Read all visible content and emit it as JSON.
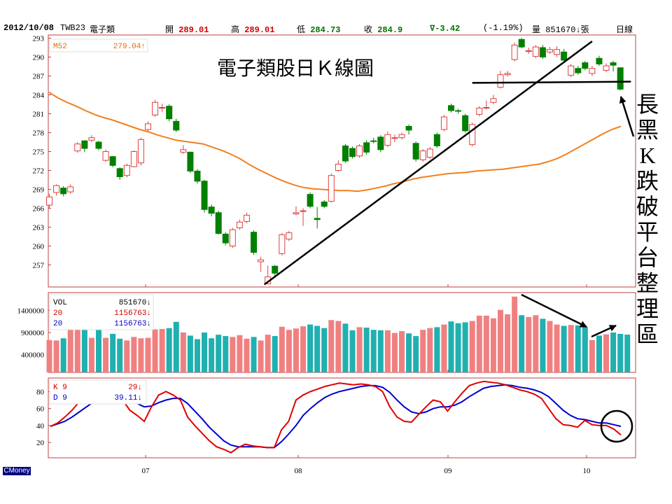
{
  "header": {
    "date": "2012/10/08",
    "code": "TWB23",
    "name": "電子類",
    "open_label": "開",
    "open": "289.01",
    "high_label": "高",
    "high": "289.01",
    "low_label": "低",
    "low": "284.73",
    "close_label": "收",
    "close": "284.9",
    "change": "∇-3.42",
    "change_pct": "(-1.19%)",
    "volume_label": "量",
    "volume": "851670↓張",
    "period": "日線"
  },
  "brand": "CMoney",
  "chart_data": {
    "type": "candlestick",
    "title": "電子類股日Ｋ線圖",
    "x_ticks": [
      "07",
      "08",
      "09",
      "10"
    ],
    "price_axis": {
      "ticks": [
        257,
        260,
        263,
        266,
        269,
        272,
        275,
        278,
        281,
        284,
        287,
        290,
        293
      ],
      "ylim": [
        253.5,
        293.5
      ]
    },
    "ma_legend": {
      "label": "M52",
      "value": "279.04↑"
    },
    "candles": [
      [
        266.5,
        267.8,
        268.3,
        266.0
      ],
      [
        268.5,
        269.6,
        269.8,
        268.0
      ],
      [
        269.2,
        268.3,
        269.5,
        267.9
      ],
      [
        268.6,
        269.4,
        269.8,
        268.3
      ],
      [
        275.1,
        276.2,
        276.5,
        274.8
      ],
      [
        276.7,
        275.5,
        276.8,
        274.9
      ],
      [
        276.8,
        277.2,
        277.6,
        276.5
      ],
      [
        276.5,
        275.5,
        276.7,
        275.2
      ],
      [
        273.6,
        275.0,
        275.3,
        273.4
      ],
      [
        274.2,
        272.8,
        274.3,
        272.5
      ],
      [
        272.3,
        271.0,
        272.5,
        270.5
      ],
      [
        271.2,
        272.8,
        273.1,
        270.9
      ],
      [
        272.6,
        275.0,
        275.2,
        272.5
      ],
      [
        273.2,
        276.9,
        277.2,
        272.8
      ],
      [
        278.5,
        279.4,
        279.8,
        278.2
      ],
      [
        280.8,
        282.8,
        283.2,
        280.5
      ],
      [
        281.9,
        282.0,
        282.6,
        281.3
      ],
      [
        282.2,
        280.2,
        282.5,
        279.8
      ],
      [
        279.8,
        278.4,
        280.2,
        278.1
      ],
      [
        274.9,
        275.3,
        276.0,
        274.6
      ],
      [
        274.9,
        271.9,
        275.0,
        271.6
      ],
      [
        271.9,
        270.3,
        272.2,
        269.9
      ],
      [
        270.3,
        265.8,
        270.5,
        265.3
      ],
      [
        266.2,
        265.2,
        266.6,
        264.7
      ],
      [
        265.3,
        262.0,
        265.6,
        261.8
      ],
      [
        261.9,
        260.5,
        262.2,
        260.1
      ],
      [
        260.0,
        262.6,
        262.9,
        259.7
      ],
      [
        262.9,
        263.8,
        264.2,
        262.6
      ],
      [
        263.9,
        264.9,
        265.3,
        263.6
      ],
      [
        262.2,
        259.0,
        262.5,
        258.6
      ],
      [
        257.5,
        257.8,
        258.3,
        255.9
      ],
      [
        254.0,
        255.1,
        256.9,
        254.0
      ],
      [
        256.8,
        255.7,
        257.0,
        255.3
      ],
      [
        258.8,
        261.8,
        262.1,
        258.5
      ],
      [
        261.1,
        262.1,
        262.4,
        260.8
      ],
      [
        265.1,
        265.3,
        266.3,
        264.9
      ],
      [
        265.5,
        265.6,
        266.0,
        263.2
      ],
      [
        268.2,
        266.3,
        268.5,
        266.0
      ],
      [
        264.4,
        264.2,
        266.2,
        262.8
      ],
      [
        267.0,
        266.3,
        267.3,
        266.0
      ],
      [
        267.1,
        271.2,
        271.5,
        266.9
      ],
      [
        272.0,
        273.0,
        273.6,
        271.8
      ],
      [
        275.9,
        273.5,
        276.2,
        273.2
      ],
      [
        275.5,
        274.2,
        275.8,
        273.9
      ],
      [
        274.3,
        275.9,
        276.2,
        274.0
      ],
      [
        276.4,
        274.9,
        276.8,
        274.5
      ],
      [
        276.7,
        276.6,
        277.2,
        276.3
      ],
      [
        277.3,
        275.3,
        277.6,
        274.9
      ],
      [
        276.0,
        277.7,
        278.2,
        275.7
      ],
      [
        277.1,
        277.2,
        277.7,
        276.5
      ],
      [
        277.2,
        277.7,
        278.0,
        276.9
      ],
      [
        279.0,
        278.4,
        279.3,
        277.7
      ],
      [
        276.3,
        273.8,
        276.6,
        273.4
      ],
      [
        273.7,
        275.1,
        275.4,
        273.4
      ],
      [
        274.1,
        275.4,
        275.7,
        273.8
      ],
      [
        277.7,
        275.9,
        278.0,
        275.6
      ],
      [
        278.5,
        280.5,
        280.8,
        278.2
      ],
      [
        282.3,
        281.5,
        282.6,
        281.2
      ],
      [
        281.5,
        281.4,
        281.8,
        281.0
      ],
      [
        280.7,
        278.3,
        281.0,
        278.0
      ],
      [
        276.1,
        279.3,
        279.6,
        275.8
      ],
      [
        280.9,
        281.9,
        282.2,
        280.6
      ],
      [
        282.0,
        282.0,
        283.1,
        281.7
      ],
      [
        282.8,
        283.4,
        284.0,
        282.5
      ],
      [
        285.2,
        287.2,
        287.8,
        285.0
      ],
      [
        287.2,
        287.4,
        287.8,
        286.9
      ],
      [
        289.6,
        291.9,
        292.3,
        289.3
      ],
      [
        292.8,
        291.6,
        293.0,
        291.4
      ],
      [
        290.9,
        291.0,
        291.5,
        290.5
      ],
      [
        290.1,
        291.6,
        291.9,
        289.8
      ],
      [
        291.5,
        290.0,
        291.9,
        289.7
      ],
      [
        290.8,
        291.2,
        291.6,
        290.5
      ],
      [
        290.4,
        291.2,
        291.7,
        290.0
      ],
      [
        290.8,
        289.5,
        291.3,
        289.2
      ],
      [
        287.1,
        288.6,
        288.9,
        286.8
      ],
      [
        288.2,
        287.5,
        288.6,
        287.2
      ],
      [
        289.1,
        288.2,
        289.4,
        287.9
      ],
      [
        287.4,
        288.2,
        288.6,
        287.0
      ],
      [
        289.8,
        288.9,
        290.2,
        288.6
      ],
      [
        287.9,
        288.6,
        289.0,
        287.6
      ],
      [
        289.1,
        288.7,
        289.4,
        287.7
      ],
      [
        288.3,
        284.9,
        288.4,
        284.7
      ]
    ],
    "ma52": [
      284.4,
      283.5,
      282.8,
      282.2,
      281.5,
      280.9,
      280.4,
      280.0,
      279.5,
      279.0,
      278.5,
      278.1,
      277.6,
      277.2,
      276.8,
      276.6,
      276.4,
      276.2,
      275.7,
      275.2,
      274.6,
      273.9,
      273.0,
      272.2,
      271.5,
      270.8,
      270.2,
      269.7,
      269.3,
      269.1,
      269.0,
      268.9,
      268.8,
      268.8,
      268.7,
      268.9,
      269.2,
      269.5,
      269.9,
      270.2,
      270.6,
      270.9,
      271.1,
      271.3,
      271.5,
      271.6,
      271.7,
      271.9,
      272.0,
      272.1,
      272.2,
      272.4,
      272.6,
      272.8,
      273.0,
      273.4,
      273.9,
      274.6,
      275.4,
      276.2,
      277.0,
      277.8,
      278.5,
      279.0
    ],
    "trendlines": [
      {
        "kind": "uptrend",
        "from": [
          30.5,
          253.9
        ],
        "to": [
          77.0,
          292.5
        ]
      },
      {
        "kind": "platform",
        "from": [
          60.0,
          285.9
        ],
        "to": [
          82.5,
          286.1
        ]
      }
    ],
    "annotations": {
      "breakdown_text": "長黑K跌破平台整理區",
      "volume_arrows": 2,
      "kd_circle": true
    },
    "volume": {
      "ticks": [
        "1400000",
        "900000",
        "400000"
      ],
      "legend": [
        {
          "label": "VOL",
          "value": "851670↓",
          "color": "#000000"
        },
        {
          "label": "20",
          "value": "1156763↓",
          "color": "#d00000"
        },
        {
          "label": "20",
          "value": "1156763↓",
          "color": "#0000c0"
        }
      ],
      "values": [
        730000,
        720000,
        770000,
        970000,
        970000,
        970000,
        780000,
        970000,
        780000,
        870000,
        760000,
        720000,
        800000,
        770000,
        780000,
        970000,
        980000,
        1000000,
        1140000,
        900000,
        830000,
        750000,
        900000,
        770000,
        850000,
        820000,
        800000,
        840000,
        760000,
        800000,
        720000,
        850000,
        820000,
        1030000,
        960000,
        990000,
        1040000,
        1080000,
        1050000,
        1000000,
        1180000,
        1160000,
        1100000,
        950000,
        1020000,
        1010000,
        960000,
        950000,
        950000,
        890000,
        930000,
        880000,
        820000,
        960000,
        1000000,
        1020000,
        1080000,
        1150000,
        1110000,
        1130000,
        1160000,
        1280000,
        1280000,
        1220000,
        1410000,
        1310000,
        1710000,
        1290000,
        1250000,
        1290000,
        1210000,
        1160000,
        1080000,
        1050000,
        1070000,
        1060000,
        1020000,
        730000,
        830000,
        860000,
        900000,
        870000,
        851670
      ]
    },
    "kd": {
      "ticks": [
        80,
        60,
        40,
        20
      ],
      "legend": [
        {
          "label": "K 9",
          "value": "29↓",
          "color": "#d00000"
        },
        {
          "label": "D 9",
          "value": "39.11↓",
          "color": "#0000c0"
        }
      ],
      "k": [
        39,
        43,
        50,
        58,
        68,
        77,
        86,
        90,
        88,
        80,
        70,
        58,
        52,
        45,
        62,
        76,
        80,
        76,
        70,
        50,
        40,
        31,
        22,
        15,
        12,
        8,
        14,
        18,
        16,
        15,
        14,
        14,
        35,
        45,
        70,
        76,
        80,
        83,
        86,
        88,
        90,
        89,
        88,
        89,
        88,
        86,
        80,
        62,
        50,
        45,
        44,
        53,
        62,
        70,
        68,
        57,
        68,
        78,
        87,
        90,
        92,
        91,
        90,
        88,
        85,
        82,
        80,
        77,
        72,
        60,
        48,
        41,
        40,
        38,
        46,
        41,
        40,
        40,
        36,
        29
      ],
      "d": [
        39,
        42,
        45,
        50,
        56,
        62,
        68,
        73,
        76,
        77,
        76,
        72,
        66,
        62,
        63,
        67,
        70,
        72,
        72,
        66,
        57,
        48,
        38,
        30,
        22,
        17,
        15,
        15,
        15,
        15,
        14,
        14,
        21,
        30,
        40,
        52,
        60,
        67,
        73,
        77,
        80,
        82,
        84,
        86,
        87,
        87,
        85,
        79,
        70,
        62,
        56,
        54,
        56,
        60,
        62,
        62,
        64,
        68,
        74,
        79,
        84,
        86,
        87,
        88,
        87,
        85,
        84,
        82,
        79,
        74,
        66,
        58,
        52,
        48,
        47,
        45,
        43,
        43,
        41,
        39
      ]
    }
  }
}
